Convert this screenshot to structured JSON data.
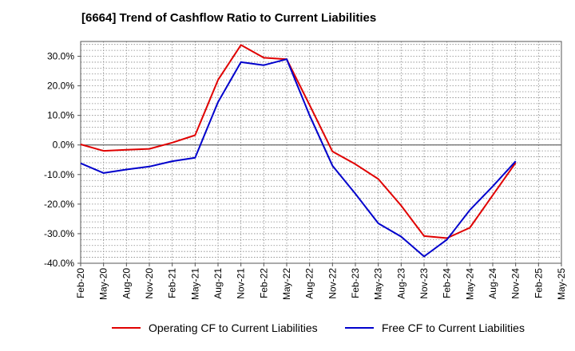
{
  "chart_data": {
    "type": "line",
    "title": "[6664]  Trend of Cashflow Ratio to Current Liabilities",
    "xlabel": "",
    "ylabel": "",
    "categories": [
      "Feb-20",
      "May-20",
      "Aug-20",
      "Nov-20",
      "Feb-21",
      "May-21",
      "Aug-21",
      "Nov-21",
      "Feb-22",
      "May-22",
      "Aug-22",
      "Nov-22",
      "Feb-23",
      "May-23",
      "Aug-23",
      "Nov-23",
      "Feb-24",
      "May-24",
      "Aug-24",
      "Nov-24",
      "Feb-25",
      "May-25"
    ],
    "yticks": [
      "30.0%",
      "20.0%",
      "10.0%",
      "0.0%",
      "-10.0%",
      "-20.0%",
      "-30.0%",
      "-40.0%"
    ],
    "ylim": [
      -40,
      35
    ],
    "grid": true,
    "legend_position": "bottom",
    "series": [
      {
        "name": "Operating CF to Current Liabilities",
        "color": "#e00000",
        "values": [
          0.2,
          -2.0,
          -1.6,
          -1.3,
          0.8,
          3.3,
          22.0,
          33.8,
          29.5,
          29.0,
          13.5,
          -2.2,
          -6.5,
          -11.5,
          -20.5,
          -30.8,
          -31.5,
          -28.0,
          -17.0,
          -6.0,
          null,
          null
        ]
      },
      {
        "name": "Free CF to Current Liabilities",
        "color": "#0000cc",
        "values": [
          -6.2,
          -9.5,
          -8.3,
          -7.3,
          -5.5,
          -4.3,
          14.5,
          28.0,
          27.0,
          29.0,
          10.0,
          -7.0,
          -16.5,
          -26.5,
          -31.0,
          -37.7,
          -32.0,
          -22.0,
          -14.0,
          -5.5,
          null,
          null
        ]
      }
    ]
  }
}
